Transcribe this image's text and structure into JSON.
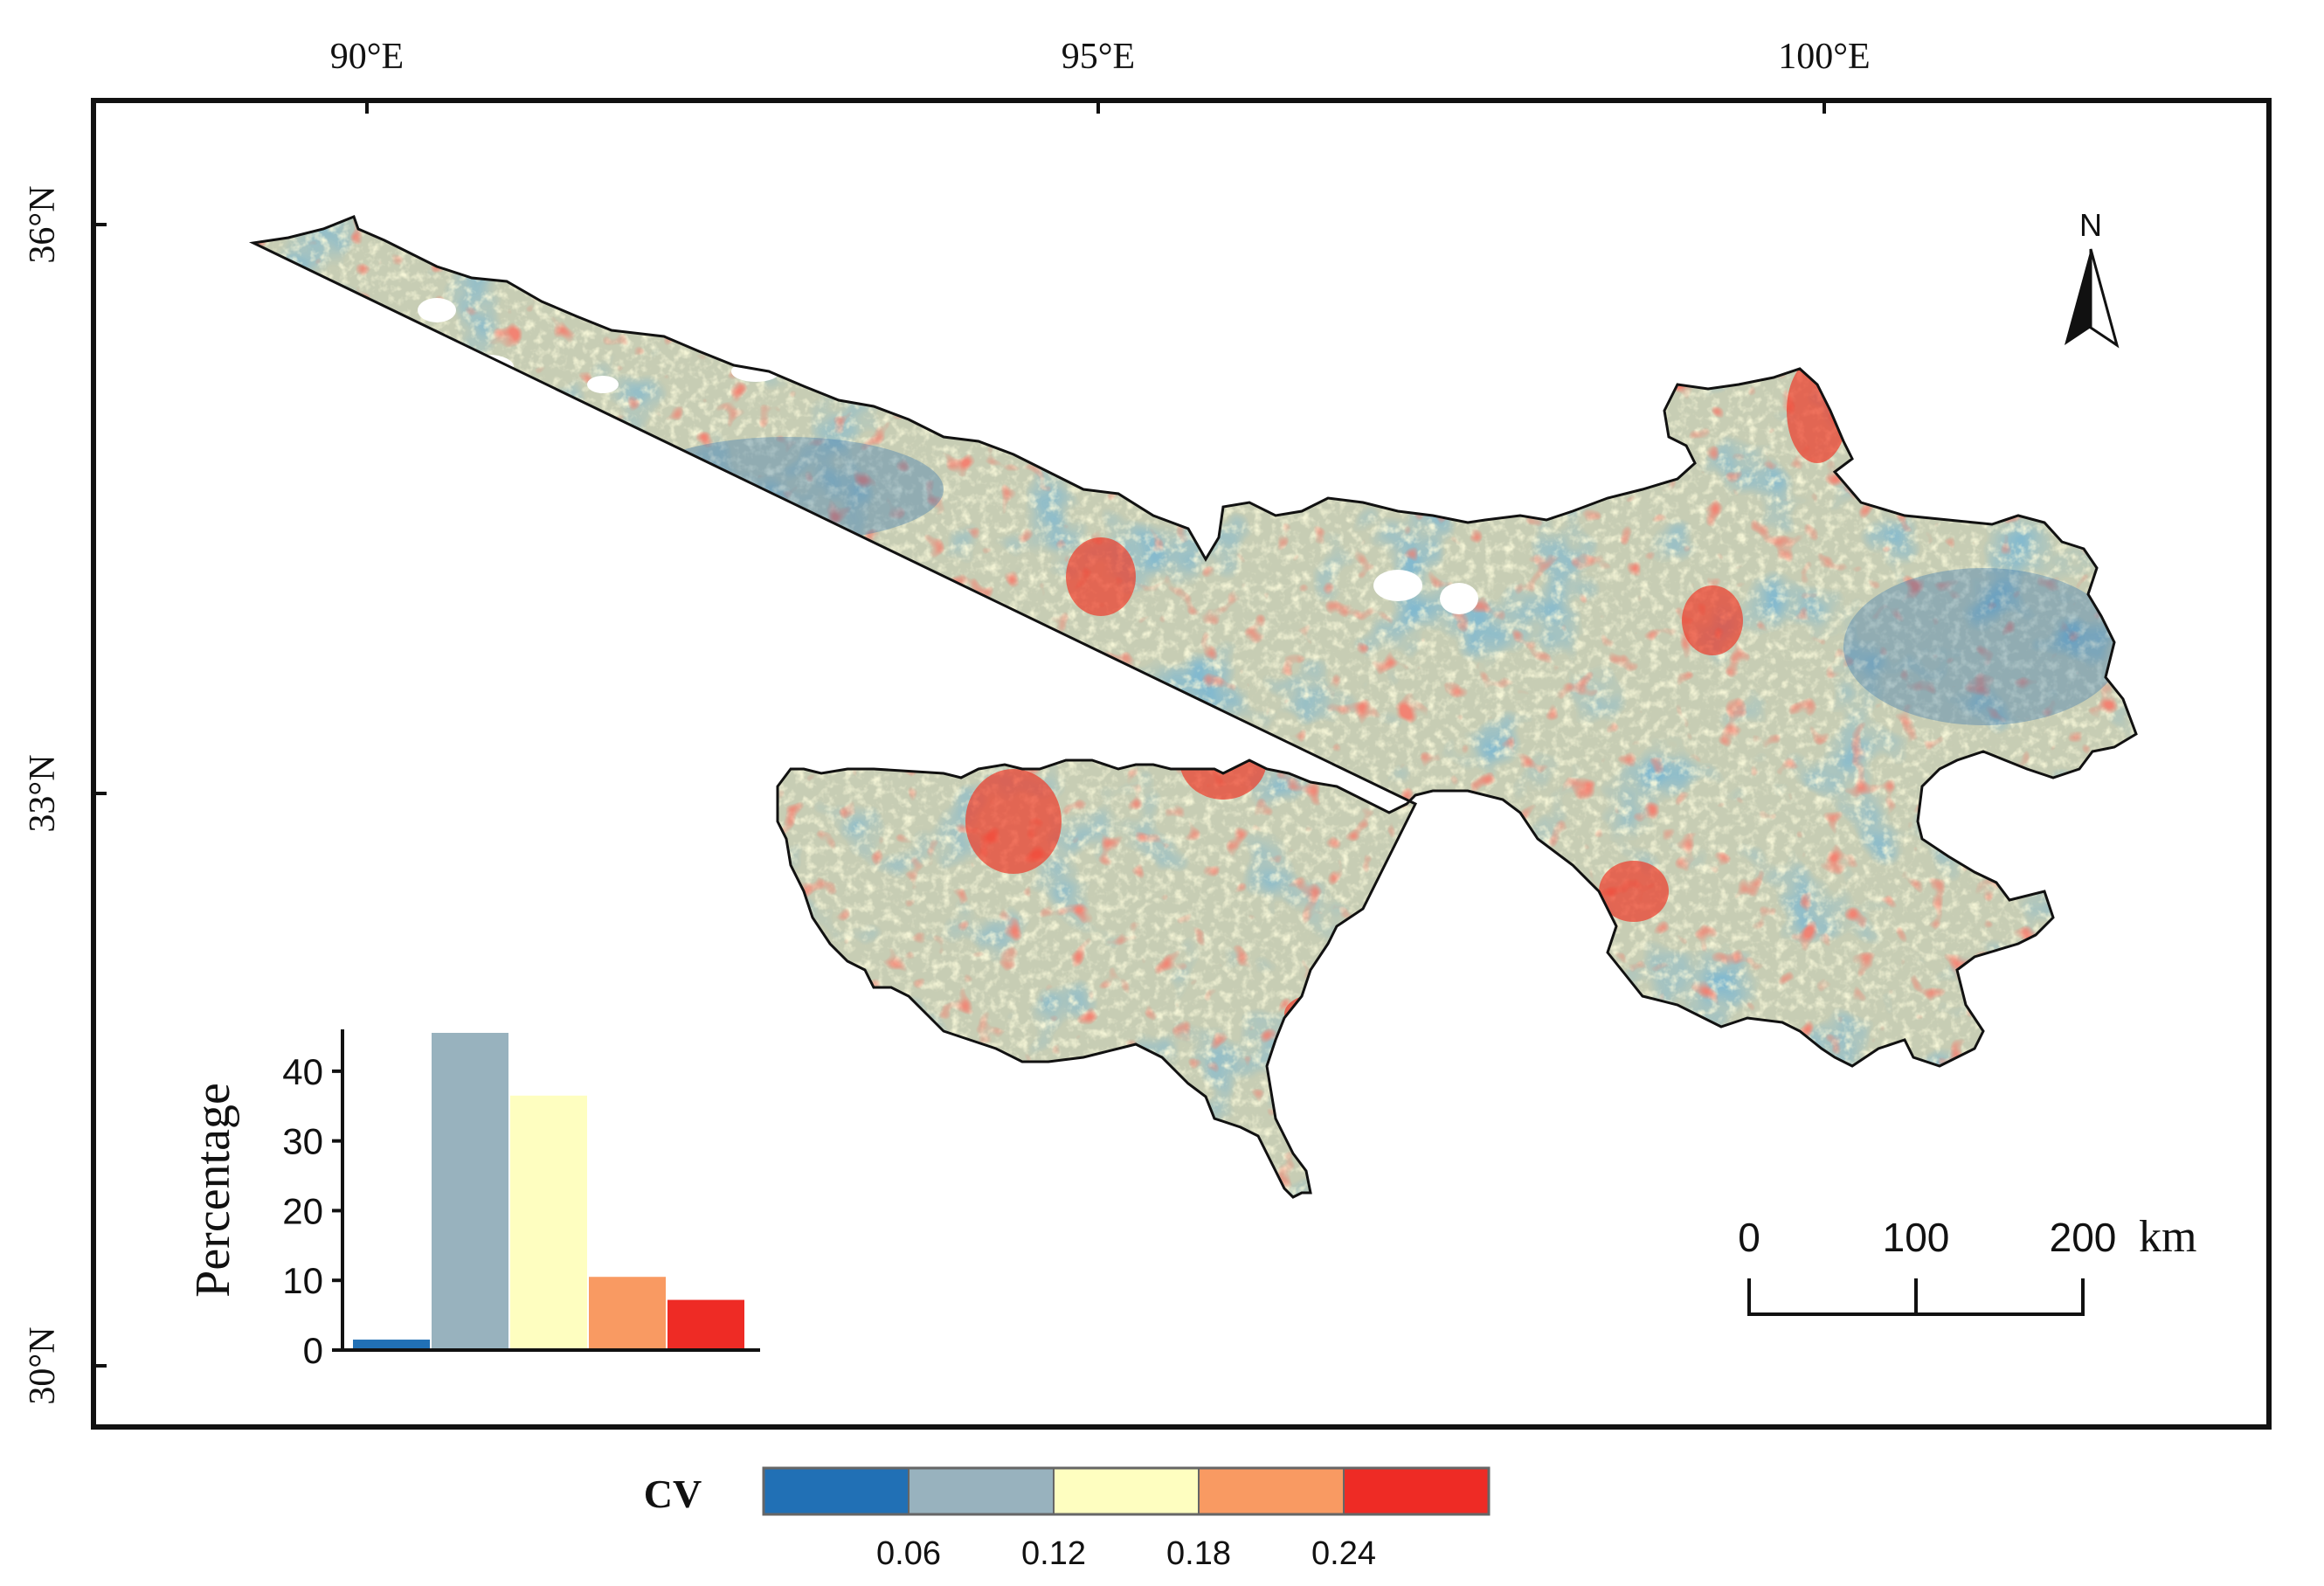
{
  "map": {
    "lon_labels": [
      "90°E",
      "95°E",
      "100°E"
    ],
    "lat_labels": [
      "36°N",
      "33°N",
      "30°N"
    ],
    "north_label": "N",
    "scale_bar": {
      "ticks": [
        "0",
        "100",
        "200"
      ],
      "unit": "km"
    }
  },
  "legend": {
    "title": "CV",
    "colors": [
      "#2170b5",
      "#98b2be",
      "#fefec0",
      "#f99a62",
      "#ee2b25"
    ],
    "breaks": [
      "0.06",
      "0.12",
      "0.18",
      "0.24"
    ]
  },
  "chart_data": {
    "type": "bar",
    "ylabel": "Percentage",
    "yticks": [
      "0",
      "10",
      "20",
      "30",
      "40"
    ],
    "ylim": [
      0,
      46
    ],
    "values": [
      1.5,
      45.5,
      36.5,
      10.5,
      7.2
    ],
    "colors": [
      "#2170b5",
      "#98b2be",
      "#fefec0",
      "#f99a62",
      "#ee2b25"
    ]
  }
}
